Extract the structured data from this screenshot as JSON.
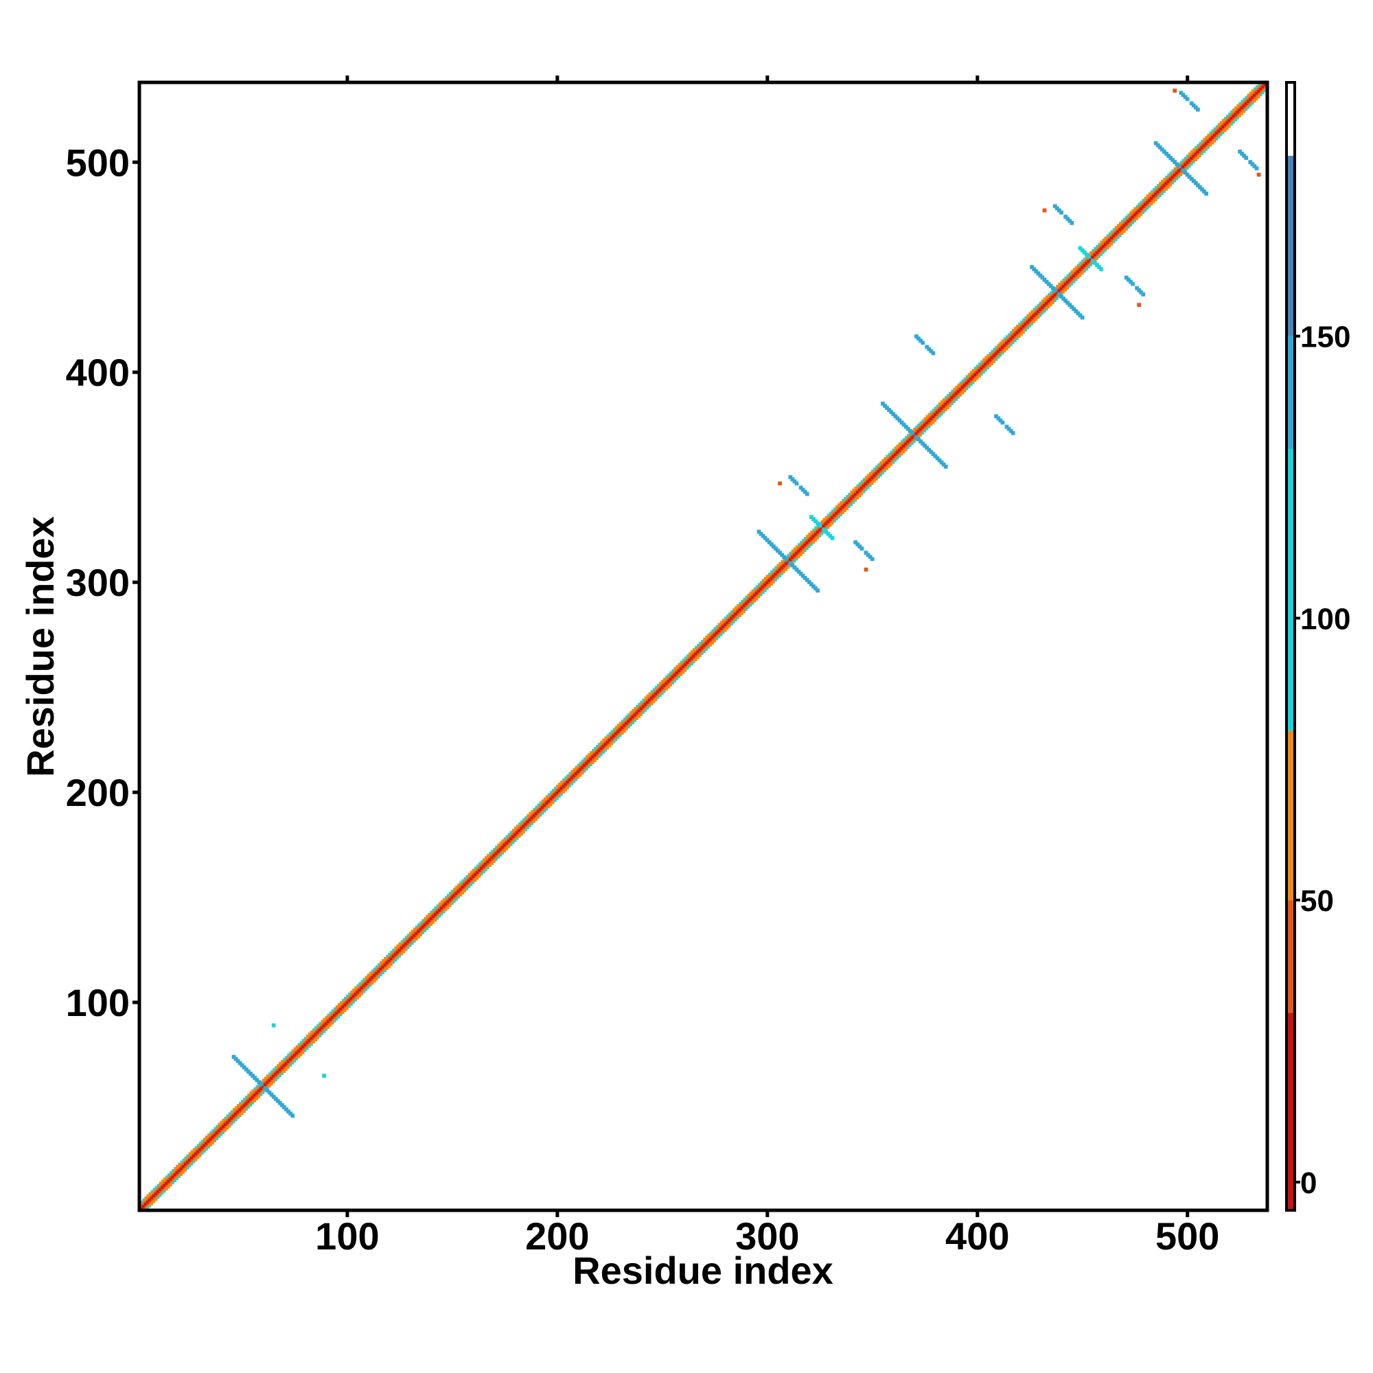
{
  "chart_data": {
    "type": "heatmap",
    "title": "",
    "xlabel": "Residue index",
    "ylabel": "Residue index",
    "xlim": [
      1,
      538
    ],
    "ylim": [
      1,
      538
    ],
    "x_ticks": [
      100,
      200,
      300,
      400,
      500
    ],
    "y_ticks": [
      100,
      200,
      300,
      400,
      500
    ],
    "grid": false,
    "colorbar": {
      "ticks": [
        0,
        50,
        100,
        150
      ],
      "range": [
        -5,
        195
      ],
      "bands": [
        {
          "from": -5,
          "to": 30,
          "color": "#d01010"
        },
        {
          "from": 30,
          "to": 50,
          "color": "#e8561a"
        },
        {
          "from": 50,
          "to": 80,
          "color": "#f08a10"
        },
        {
          "from": 80,
          "to": 130,
          "color": "#19d4dc"
        },
        {
          "from": 130,
          "to": 150,
          "color": "#31a8d6"
        },
        {
          "from": 150,
          "to": 182,
          "color": "#4684c0"
        },
        {
          "from": 182,
          "to": 195,
          "color": "#ffffff"
        }
      ]
    },
    "diagonal": {
      "from": 1,
      "to": 538
    },
    "antiparallel_contacts": [
      {
        "center": [
          60,
          60
        ],
        "half_length": 14,
        "value": 135
      },
      {
        "center": [
          310,
          310
        ],
        "half_length": 14,
        "value": 135
      },
      {
        "center": [
          370,
          370
        ],
        "half_length": 15,
        "value": 140
      },
      {
        "center": [
          438,
          438
        ],
        "half_length": 12,
        "value": 135
      },
      {
        "center": [
          497,
          497
        ],
        "half_length": 12,
        "value": 140
      },
      {
        "center": [
          454,
          454
        ],
        "half_length": 5,
        "value": 125
      },
      {
        "center": [
          326,
          326
        ],
        "half_length": 5,
        "value": 125
      },
      {
        "center": [
          315,
          346
        ],
        "half_length": 4,
        "value": 140
      },
      {
        "center": [
          346,
          315
        ],
        "half_length": 4,
        "value": 140
      },
      {
        "center": [
          375,
          413
        ],
        "half_length": 4,
        "value": 140
      },
      {
        "center": [
          413,
          375
        ],
        "half_length": 4,
        "value": 140
      },
      {
        "center": [
          441,
          475
        ],
        "half_length": 4,
        "value": 140
      },
      {
        "center": [
          475,
          441
        ],
        "half_length": 4,
        "value": 140
      },
      {
        "center": [
          501,
          529
        ],
        "half_length": 4,
        "value": 140
      },
      {
        "center": [
          529,
          501
        ],
        "half_length": 4,
        "value": 140
      }
    ],
    "isolated_points": [
      {
        "x": 65,
        "y": 89,
        "value": 110
      },
      {
        "x": 89,
        "y": 65,
        "value": 110
      },
      {
        "x": 306,
        "y": 347,
        "value": 40
      },
      {
        "x": 347,
        "y": 306,
        "value": 40
      },
      {
        "x": 432,
        "y": 477,
        "value": 40
      },
      {
        "x": 477,
        "y": 432,
        "value": 40
      },
      {
        "x": 494,
        "y": 534,
        "value": 40
      },
      {
        "x": 534,
        "y": 494,
        "value": 40
      }
    ]
  }
}
